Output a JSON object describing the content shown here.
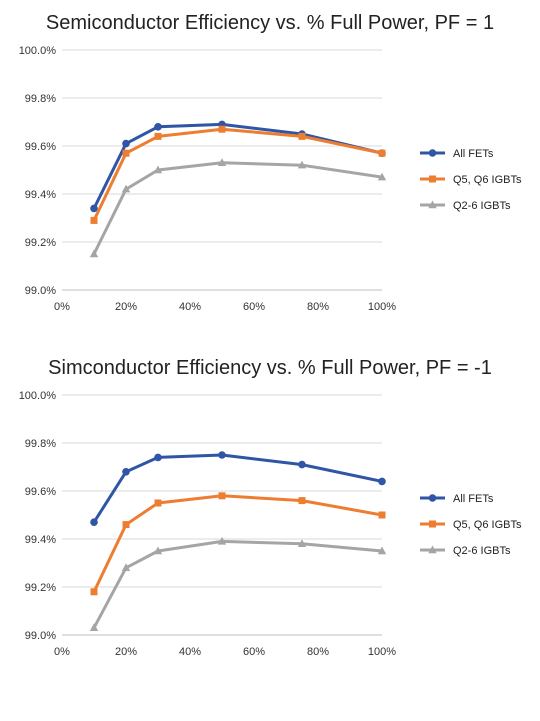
{
  "chart_data": [
    {
      "type": "line",
      "title": "Semiconductor Efficiency vs. % Full Power, PF = 1",
      "xlabel": "",
      "ylabel": "",
      "x": [
        0.1,
        0.2,
        0.3,
        0.5,
        0.75,
        1.0
      ],
      "xlim": [
        0,
        1.0
      ],
      "ylim": [
        99.0,
        100.0
      ],
      "x_ticks": [
        "0%",
        "20%",
        "40%",
        "60%",
        "80%",
        "100%"
      ],
      "y_ticks": [
        "99.0%",
        "99.2%",
        "99.4%",
        "99.6%",
        "99.8%",
        "100.0%"
      ],
      "grid": "horizontal",
      "legend": "right",
      "series": [
        {
          "name": "All FETs",
          "color": "#2F55A4",
          "marker": "circle",
          "values": [
            99.34,
            99.61,
            99.68,
            99.69,
            99.65,
            99.57
          ]
        },
        {
          "name": "Q5, Q6 IGBTs",
          "color": "#ED7D31",
          "marker": "square",
          "values": [
            99.29,
            99.57,
            99.64,
            99.67,
            99.64,
            99.57
          ]
        },
        {
          "name": "Q2-6 IGBTs",
          "color": "#A5A5A5",
          "marker": "triangle",
          "values": [
            99.15,
            99.42,
            99.5,
            99.53,
            99.52,
            99.47
          ]
        }
      ]
    },
    {
      "type": "line",
      "title": "Simconductor Efficiency vs. % Full Power, PF = -1",
      "xlabel": "",
      "ylabel": "",
      "x": [
        0.1,
        0.2,
        0.3,
        0.5,
        0.75,
        1.0
      ],
      "xlim": [
        0,
        1.0
      ],
      "ylim": [
        99.0,
        100.0
      ],
      "x_ticks": [
        "0%",
        "20%",
        "40%",
        "60%",
        "80%",
        "100%"
      ],
      "y_ticks": [
        "99.0%",
        "99.2%",
        "99.4%",
        "99.6%",
        "99.8%",
        "100.0%"
      ],
      "grid": "horizontal",
      "legend": "right",
      "series": [
        {
          "name": "All FETs",
          "color": "#2F55A4",
          "marker": "circle",
          "values": [
            99.47,
            99.68,
            99.74,
            99.75,
            99.71,
            99.64
          ]
        },
        {
          "name": "Q5, Q6 IGBTs",
          "color": "#ED7D31",
          "marker": "square",
          "values": [
            99.18,
            99.46,
            99.55,
            99.58,
            99.56,
            99.5
          ]
        },
        {
          "name": "Q2-6 IGBTs",
          "color": "#A5A5A5",
          "marker": "triangle",
          "values": [
            99.03,
            99.28,
            99.35,
            99.39,
            99.38,
            99.35
          ]
        }
      ]
    }
  ]
}
